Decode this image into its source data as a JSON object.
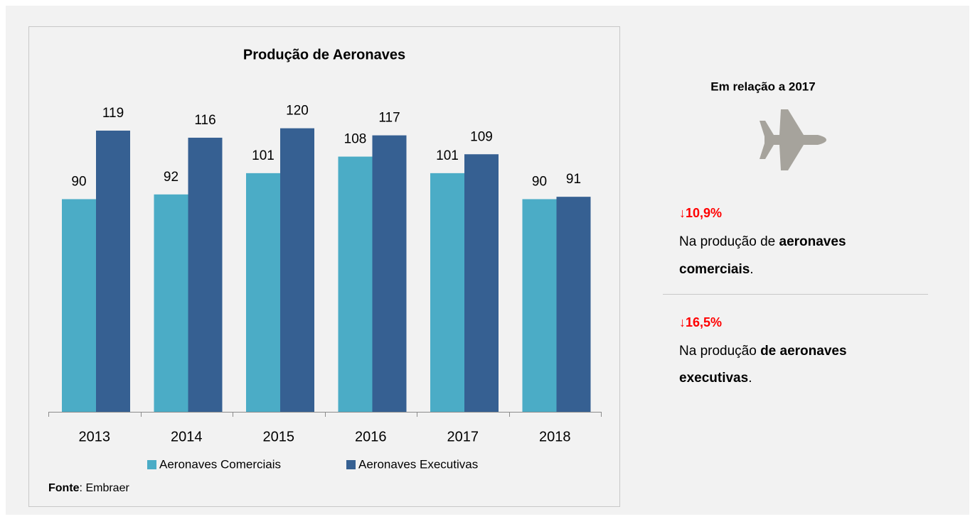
{
  "chart_data": {
    "type": "bar",
    "title": "Produção de Aeronaves",
    "categories": [
      "2013",
      "2014",
      "2015",
      "2016",
      "2017",
      "2018"
    ],
    "series": [
      {
        "name": "Aeronaves Comerciais",
        "color": "#4bacc6",
        "values": [
          90,
          92,
          101,
          108,
          101,
          90
        ]
      },
      {
        "name": "Aeronaves Executivas",
        "color": "#366092",
        "values": [
          119,
          116,
          120,
          117,
          109,
          91
        ]
      }
    ],
    "ylim": [
      0,
      130
    ],
    "source_label": "Fonte",
    "source_text": ": Embraer"
  },
  "panel": {
    "title": "Em relação a 2017",
    "items": [
      {
        "change": "↓10,9%",
        "text": [
          "Na produção de ",
          "aeronaves",
          "comerciais",
          "."
        ]
      },
      {
        "change": "↓16,5%",
        "text": [
          "Na produção ",
          "de aeronaves",
          "executivas",
          "."
        ]
      }
    ]
  }
}
